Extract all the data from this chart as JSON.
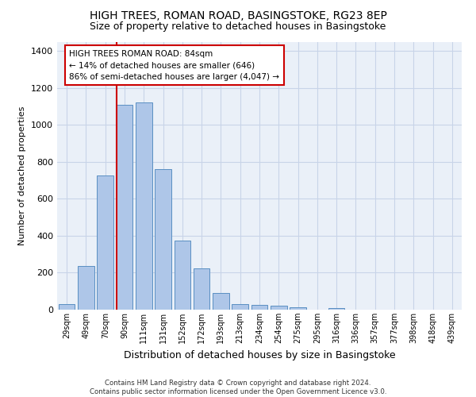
{
  "title": "HIGH TREES, ROMAN ROAD, BASINGSTOKE, RG23 8EP",
  "subtitle": "Size of property relative to detached houses in Basingstoke",
  "xlabel": "Distribution of detached houses by size in Basingstoke",
  "ylabel": "Number of detached properties",
  "bar_labels": [
    "29sqm",
    "49sqm",
    "70sqm",
    "90sqm",
    "111sqm",
    "131sqm",
    "152sqm",
    "172sqm",
    "193sqm",
    "213sqm",
    "234sqm",
    "254sqm",
    "275sqm",
    "295sqm",
    "316sqm",
    "336sqm",
    "357sqm",
    "377sqm",
    "398sqm",
    "418sqm",
    "439sqm"
  ],
  "bar_values": [
    30,
    235,
    725,
    1110,
    1120,
    760,
    375,
    225,
    90,
    30,
    25,
    20,
    15,
    0,
    10,
    0,
    0,
    0,
    0,
    0,
    0
  ],
  "bar_color": "#aec6e8",
  "bar_edge_color": "#5a8fc2",
  "ylim": [
    0,
    1450
  ],
  "yticks": [
    0,
    200,
    400,
    600,
    800,
    1000,
    1200,
    1400
  ],
  "vline_color": "#cc0000",
  "annotation_text": "HIGH TREES ROMAN ROAD: 84sqm\n← 14% of detached houses are smaller (646)\n86% of semi-detached houses are larger (4,047) →",
  "annotation_box_color": "#cc0000",
  "footer_text": "Contains HM Land Registry data © Crown copyright and database right 2024.\nContains public sector information licensed under the Open Government Licence v3.0.",
  "background_color": "#ffffff",
  "axes_background": "#eaf0f8",
  "grid_color": "#c8d4e8",
  "title_fontsize": 10,
  "subtitle_fontsize": 9,
  "ylabel_fontsize": 8,
  "xlabel_fontsize": 9
}
